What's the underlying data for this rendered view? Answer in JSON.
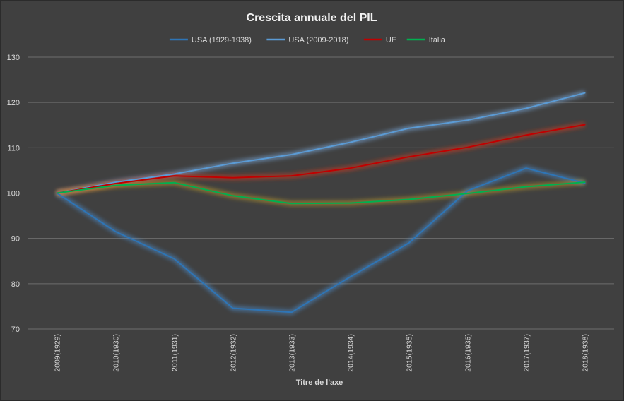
{
  "chart_data": {
    "type": "line",
    "title": "Crescita annuale del PIL",
    "xlabel": "Titre de l'axe",
    "ylabel": "",
    "categories": [
      "2009(1929)",
      "2010(1930)",
      "2011(1931)",
      "2012(1932)",
      "2013(1933)",
      "2014(1934)",
      "2015(1935)",
      "2016(1936)",
      "2017(1937)",
      "2018(1938)"
    ],
    "ylim": [
      70,
      130
    ],
    "yticks": [
      70,
      80,
      90,
      100,
      110,
      120,
      130
    ],
    "grid": true,
    "legend_position": "top",
    "series": [
      {
        "name": "USA (1929-1938)",
        "color": "#2e75b6",
        "glow": "#4a8fd4",
        "values": [
          100,
          91.5,
          85.5,
          74.6,
          73.7,
          81.5,
          89,
          100.5,
          105.5,
          102.2
        ]
      },
      {
        "name": "USA (2009-2018)",
        "color": "#5b9bd5",
        "glow": "#7fb3ea",
        "values": [
          100,
          102.4,
          104.2,
          106.6,
          108.5,
          111.2,
          114.3,
          116.1,
          118.7,
          122.1
        ]
      },
      {
        "name": "UE",
        "color": "#c00000",
        "glow": "#e03a1e",
        "values": [
          100,
          102.1,
          103.8,
          103.4,
          103.8,
          105.5,
          108,
          110.1,
          112.8,
          115.1
        ]
      },
      {
        "name": "Italia",
        "color": "#00b050",
        "glow": "#c9a227",
        "values": [
          100,
          101.7,
          102.3,
          99.4,
          97.7,
          97.8,
          98.6,
          99.9,
          101.4,
          102.4
        ]
      }
    ]
  }
}
